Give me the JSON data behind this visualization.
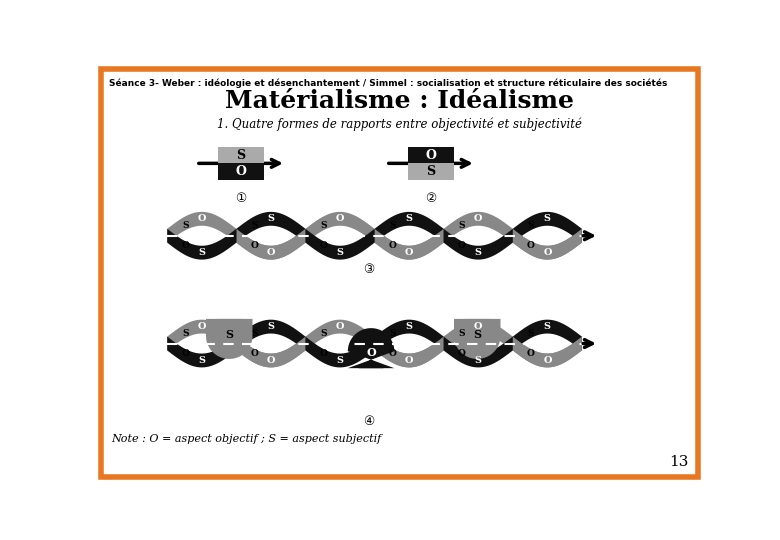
{
  "title": "Matérialisme : Idéalisme",
  "subtitle": "Séance 3- Weber : idéologie et désenchantement / Simmel : socialisation et structure réticulaire des sociétés",
  "section_title": "1. Quatre formes de rapports entre objectivité et subjectivité",
  "note": "Note : O = aspect objectif ; S = aspect subjectif",
  "page_number": "13",
  "border_color": "#E87722",
  "bg_color": "#FFFFFF",
  "black": "#000000",
  "gray": "#888888",
  "white": "#FFFFFF",
  "num1": "①",
  "num2": "②",
  "num3": "③",
  "num4": "④"
}
